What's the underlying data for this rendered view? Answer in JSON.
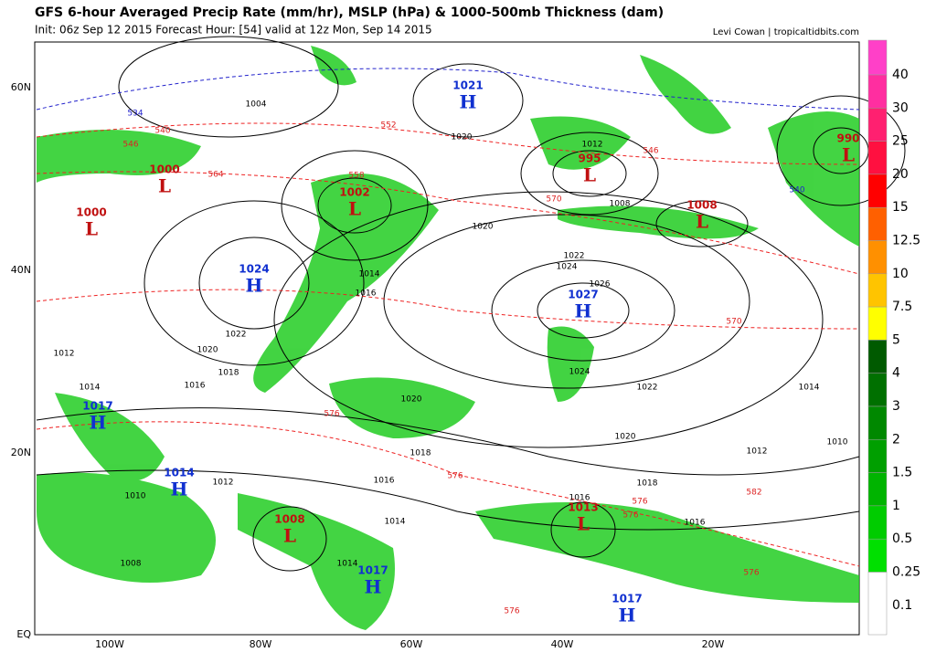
{
  "header": {
    "title": "GFS 6-hour Averaged Precip Rate (mm/hr), MSLP (hPa) & 1000-500mb Thickness (dam)",
    "subtitle": "Init: 06z Sep 12 2015   Forecast Hour: [54]   valid at 12z Mon, Sep 14 2015",
    "credit": "Levi Cowan | tropicaltidbits.com"
  },
  "axes": {
    "lat": [
      "60N",
      "40N",
      "20N",
      "EQ"
    ],
    "lon": [
      "100W",
      "80W",
      "60W",
      "40W",
      "20W"
    ]
  },
  "colorbar": [
    {
      "label": "40",
      "color": "#ff40c8"
    },
    {
      "label": "30",
      "color": "#ff2ea0"
    },
    {
      "label": "25",
      "color": "#ff2070"
    },
    {
      "label": "20",
      "color": "#ff1040"
    },
    {
      "label": "15",
      "color": "#ff0000"
    },
    {
      "label": "12.5",
      "color": "#ff6000"
    },
    {
      "label": "10",
      "color": "#ff9000"
    },
    {
      "label": "7.5",
      "color": "#ffc400"
    },
    {
      "label": "5",
      "color": "#ffff00"
    },
    {
      "label": "4",
      "color": "#005a00"
    },
    {
      "label": "3",
      "color": "#007000"
    },
    {
      "label": "2",
      "color": "#008800"
    },
    {
      "label": "1.5",
      "color": "#009f00"
    },
    {
      "label": "1",
      "color": "#00b400"
    },
    {
      "label": "0.5",
      "color": "#00cc00"
    },
    {
      "label": "0.25",
      "color": "#00e000"
    },
    {
      "label": "0.1",
      "color": "#ffffff"
    }
  ],
  "centers": [
    {
      "type": "H",
      "value": "1021"
    },
    {
      "type": "L",
      "value": "1000"
    },
    {
      "type": "L",
      "value": "1000"
    },
    {
      "type": "L",
      "value": "1002"
    },
    {
      "type": "H",
      "value": "1024"
    },
    {
      "type": "L",
      "value": "995"
    },
    {
      "type": "L",
      "value": "1008"
    },
    {
      "type": "L",
      "value": "990"
    },
    {
      "type": "H",
      "value": "1027"
    },
    {
      "type": "H",
      "value": "1017"
    },
    {
      "type": "H",
      "value": "1014"
    },
    {
      "type": "L",
      "value": "1008"
    },
    {
      "type": "L",
      "value": "1013"
    },
    {
      "type": "H",
      "value": "1017"
    },
    {
      "type": "H",
      "value": "1017"
    }
  ],
  "isobar_labels": [
    "1020",
    "1004",
    "1012",
    "1008",
    "1020",
    "1022",
    "1024",
    "1026",
    "1024",
    "1022",
    "1020",
    "1020",
    "1018",
    "1016",
    "1018",
    "1016",
    "1016",
    "1014",
    "1014",
    "1012",
    "1010",
    "1008",
    "1014",
    "1016",
    "1018",
    "1020",
    "1022",
    "1014",
    "1016",
    "1012",
    "1010",
    "1014",
    "1012"
  ],
  "thickness_labels": [
    "540",
    "546",
    "552",
    "564",
    "558",
    "570",
    "546",
    "570",
    "576",
    "576",
    "576",
    "576",
    "576",
    "576",
    "540",
    "534",
    "582"
  ]
}
